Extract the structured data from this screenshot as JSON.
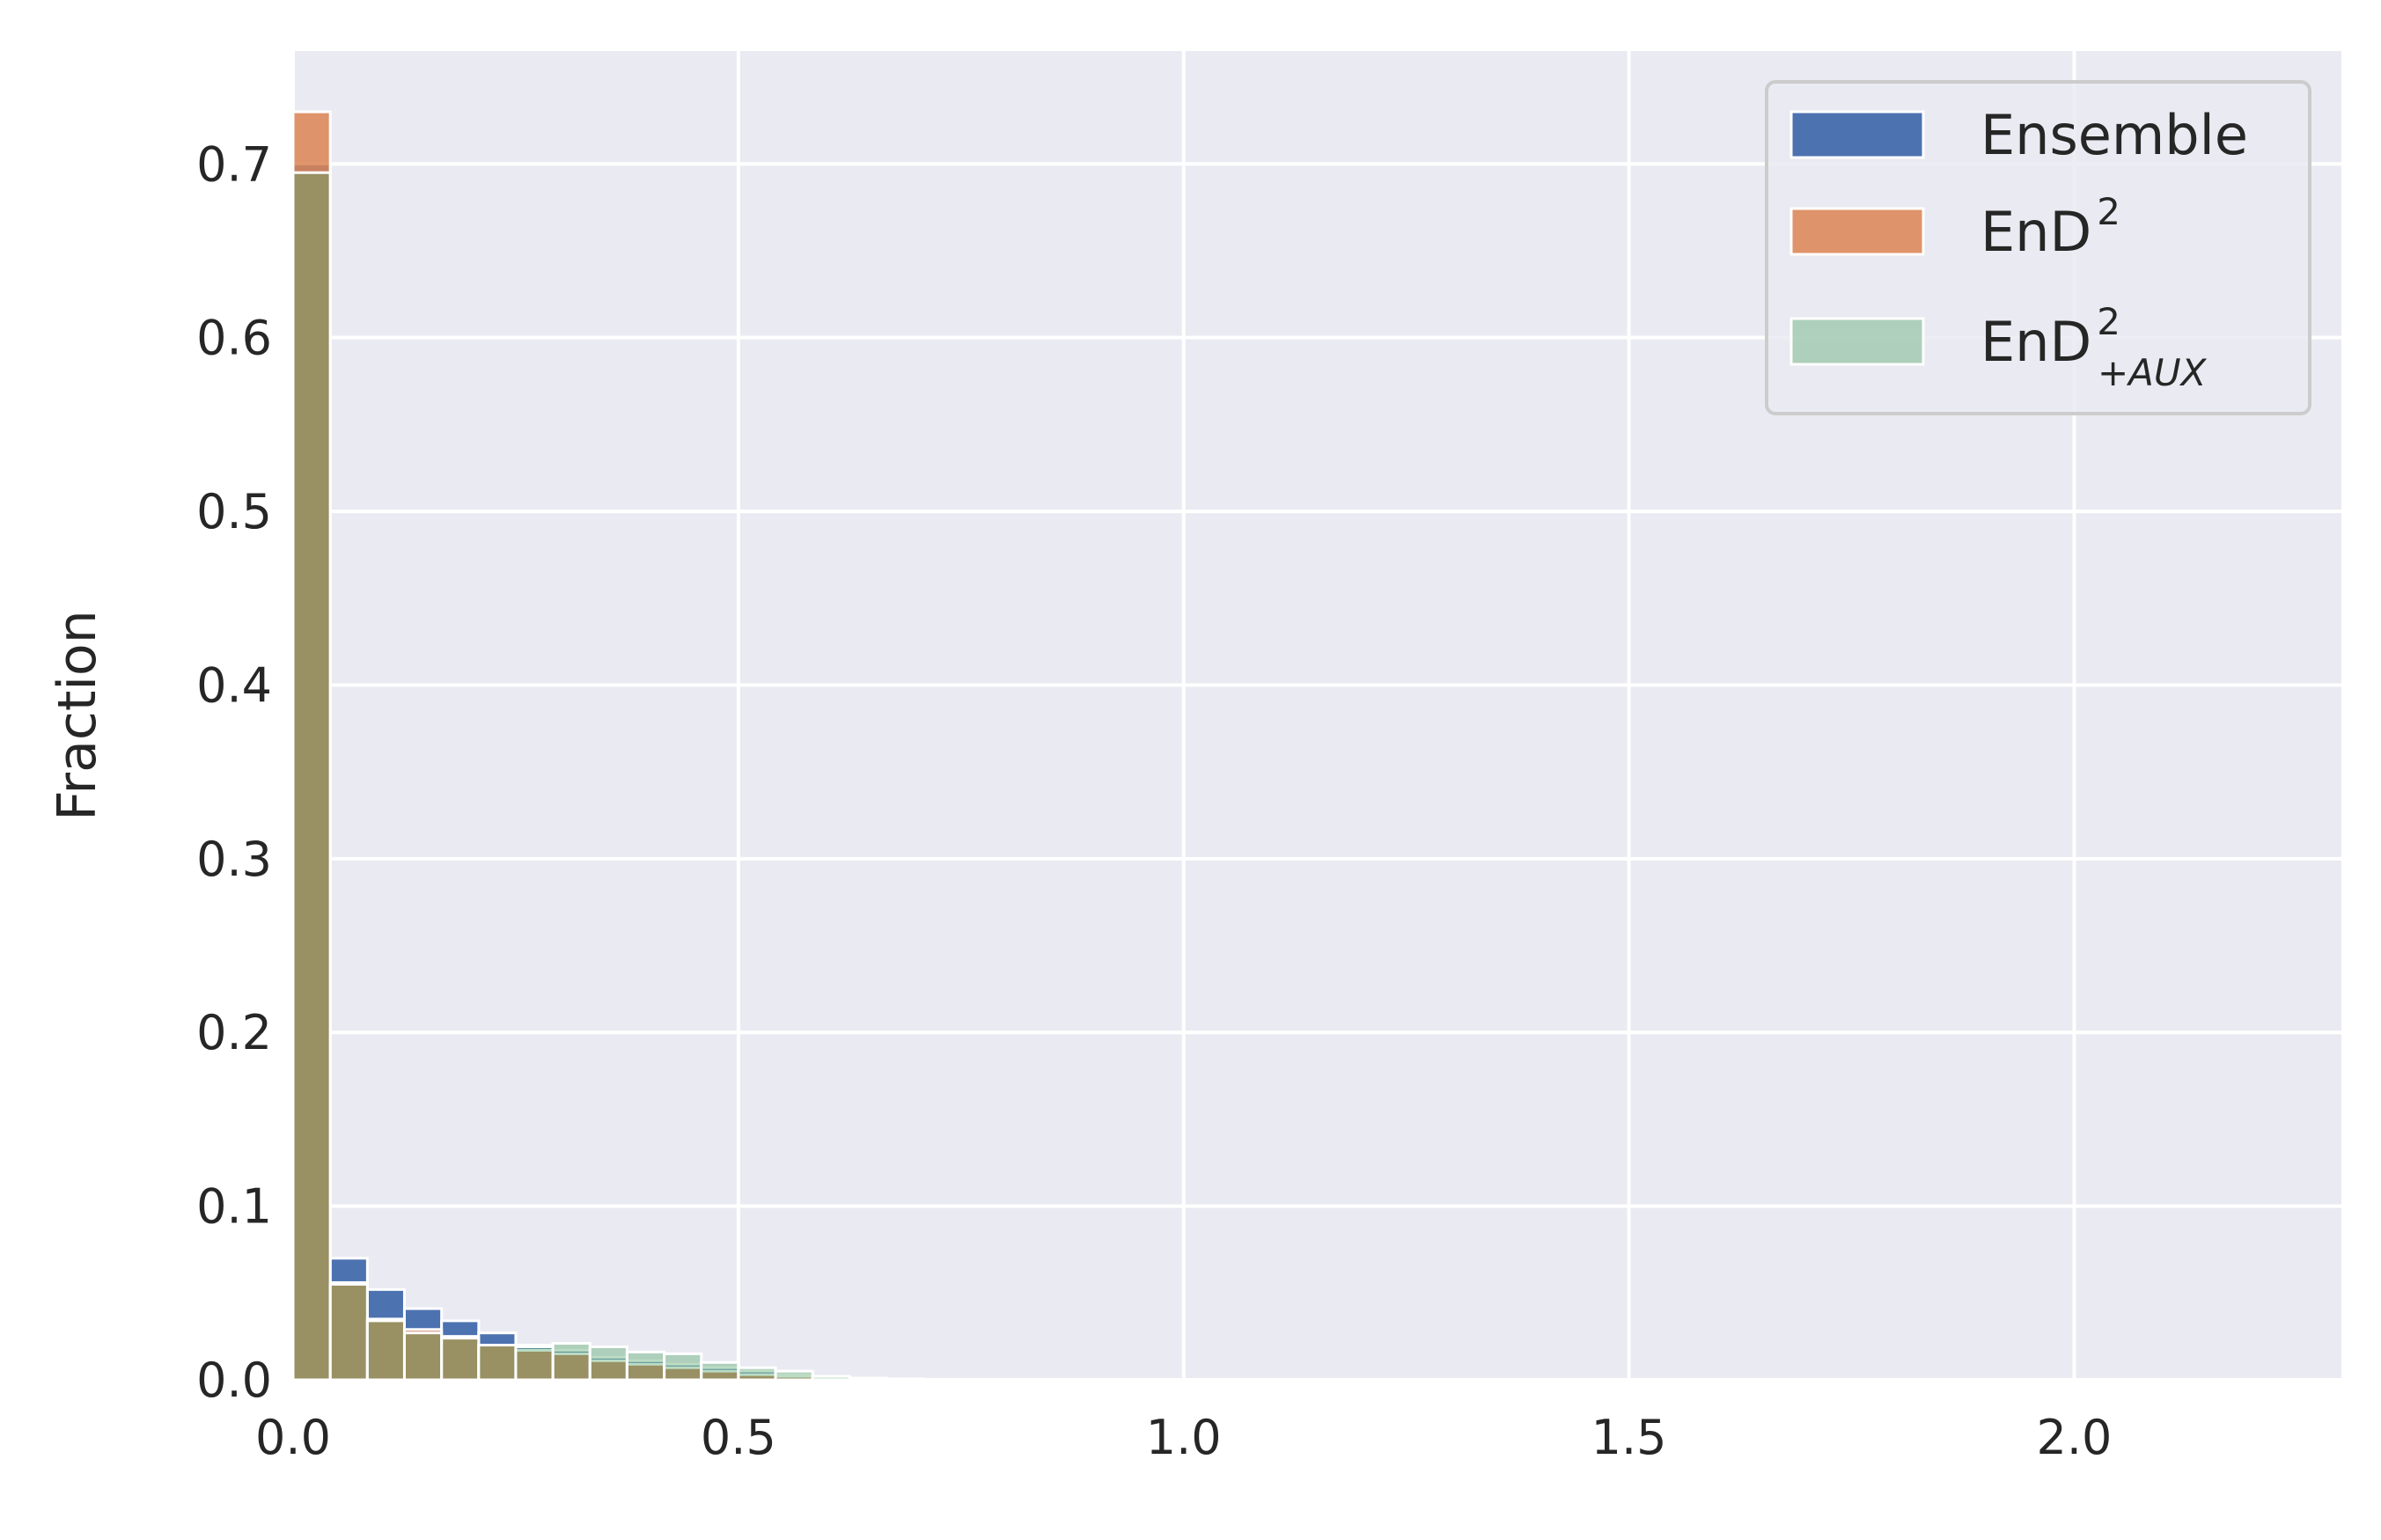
{
  "chart_data": {
    "type": "bar",
    "title": "",
    "xlabel": "",
    "ylabel": "Fraction",
    "xlim": [
      0,
      2.3
    ],
    "ylim": [
      0,
      0.765
    ],
    "xticks": [
      "0.0",
      "0.5",
      "1.0",
      "1.5",
      "2.0"
    ],
    "yticks": [
      "0.0",
      "0.1",
      "0.2",
      "0.3",
      "0.4",
      "0.5",
      "0.6",
      "0.7"
    ],
    "grid": true,
    "legend_position": "top-right",
    "bin_width": 0.0417,
    "bin_starts": [
      0.0,
      0.0417,
      0.0833,
      0.125,
      0.1667,
      0.2083,
      0.25,
      0.2917,
      0.3333,
      0.375,
      0.4167,
      0.4583,
      0.5,
      0.5417,
      0.5833,
      0.625,
      0.6667,
      0.7083,
      0.75
    ],
    "series": [
      {
        "name": "Ensemble",
        "label_base": "Ensemble",
        "label_sup": "",
        "label_sub": "",
        "color": "#4c72b0",
        "opacity": 1.0,
        "values": [
          0.7,
          0.07,
          0.052,
          0.041,
          0.034,
          0.027,
          0.02,
          0.017,
          0.013,
          0.011,
          0.009,
          0.007,
          0.005,
          0.003,
          0.002,
          0.001,
          0.0006,
          0.0003,
          0.0001
        ]
      },
      {
        "name": "EnD2",
        "label_base": "EnD",
        "label_sup": "2",
        "label_sub": "",
        "color": "#dd8452",
        "opacity": 0.85,
        "values": [
          0.73,
          0.056,
          0.035,
          0.029,
          0.025,
          0.02,
          0.017,
          0.015,
          0.011,
          0.009,
          0.007,
          0.005,
          0.003,
          0.002,
          0.001,
          0.0005,
          0.0002,
          0.0001,
          0.0
        ]
      },
      {
        "name": "EnD2+AUX",
        "label_base": "EnD",
        "label_sup": "2",
        "label_sub": "+AUX",
        "color": "#55a868",
        "opacity": 0.4,
        "values": [
          0.695,
          0.055,
          0.034,
          0.027,
          0.024,
          0.02,
          0.019,
          0.021,
          0.019,
          0.016,
          0.015,
          0.01,
          0.007,
          0.005,
          0.002,
          0.001,
          0.0004,
          0.0002,
          0.0
        ]
      }
    ]
  }
}
